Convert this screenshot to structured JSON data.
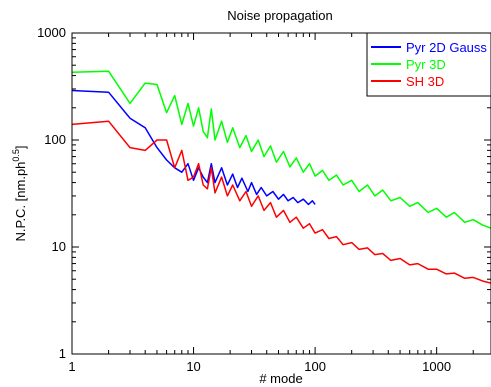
{
  "chart_data": {
    "type": "line",
    "title": "Noise propagation",
    "xlabel": "# mode",
    "ylabel": "N.P.C. [nm.ph",
    "ylabel_sup": "0.5",
    "ylabel_end": "]",
    "x_scale": "log",
    "y_scale": "log",
    "xlim": [
      1,
      2800
    ],
    "ylim": [
      1,
      1000
    ],
    "x_ticks": [
      {
        "value": 1,
        "label": "1"
      },
      {
        "value": 10,
        "label": "10"
      },
      {
        "value": 100,
        "label": "100"
      },
      {
        "value": 1000,
        "label": "1000"
      }
    ],
    "y_ticks": [
      {
        "value": 1,
        "label": "1"
      },
      {
        "value": 10,
        "label": "10"
      },
      {
        "value": 100,
        "label": "100"
      },
      {
        "value": 1000,
        "label": "1000"
      }
    ],
    "legend_position": "top-right",
    "series": [
      {
        "name": "Pyr 2D Gauss",
        "color": "#0000ff",
        "x": [
          1,
          2,
          3,
          4,
          5,
          6,
          7,
          8,
          9,
          10,
          11,
          12,
          13,
          14,
          15,
          17,
          19,
          21,
          23,
          25,
          28,
          30,
          33,
          36,
          40,
          45,
          50,
          55,
          60,
          66,
          72,
          80,
          88,
          95,
          100
        ],
        "y": [
          290,
          280,
          160,
          130,
          85,
          65,
          55,
          50,
          60,
          42,
          55,
          45,
          40,
          60,
          40,
          55,
          38,
          48,
          36,
          44,
          33,
          40,
          31,
          36,
          30,
          33,
          28,
          31,
          27,
          29,
          26,
          28,
          25,
          27,
          25
        ]
      },
      {
        "name": "Pyr 3D",
        "color": "#00ff00",
        "x": [
          1,
          2,
          3,
          4,
          5,
          6,
          7,
          8,
          9,
          10,
          11,
          12,
          13,
          14,
          15,
          17,
          19,
          21,
          24,
          27,
          30,
          34,
          38,
          43,
          48,
          55,
          62,
          70,
          80,
          90,
          100,
          115,
          130,
          150,
          170,
          200,
          230,
          270,
          310,
          360,
          420,
          500,
          600,
          700,
          850,
          1000,
          1200,
          1400,
          1700,
          2000,
          2400,
          2800
        ],
        "y": [
          430,
          440,
          220,
          340,
          330,
          180,
          260,
          140,
          220,
          135,
          200,
          120,
          105,
          195,
          100,
          150,
          95,
          130,
          85,
          110,
          78,
          100,
          70,
          88,
          62,
          78,
          56,
          68,
          50,
          60,
          46,
          52,
          42,
          47,
          38,
          42,
          33,
          38,
          30,
          34,
          27,
          29,
          24,
          26,
          21,
          23,
          19,
          21,
          17,
          18,
          16,
          15
        ]
      },
      {
        "name": "SH 3D",
        "color": "#ff0000",
        "x": [
          1,
          2,
          3,
          4,
          5,
          6,
          7,
          8,
          9,
          10,
          11,
          12,
          13,
          14,
          15,
          17,
          19,
          21,
          24,
          27,
          30,
          34,
          38,
          43,
          48,
          55,
          62,
          70,
          80,
          90,
          100,
          115,
          130,
          150,
          170,
          200,
          230,
          270,
          310,
          360,
          420,
          500,
          600,
          700,
          850,
          1000,
          1200,
          1400,
          1700,
          2000,
          2400,
          2800
        ],
        "y": [
          140,
          150,
          85,
          80,
          100,
          100,
          55,
          80,
          42,
          45,
          60,
          38,
          35,
          55,
          32,
          45,
          30,
          38,
          27,
          33,
          24,
          30,
          22,
          26,
          19,
          22,
          17,
          19,
          15,
          16.5,
          13.5,
          14.5,
          12,
          12.5,
          10.5,
          11,
          9.5,
          9.8,
          8.5,
          8.7,
          7.5,
          7.8,
          6.8,
          7,
          6.2,
          6.2,
          5.6,
          5.7,
          5.1,
          5.2,
          4.8,
          4.6
        ]
      }
    ]
  }
}
